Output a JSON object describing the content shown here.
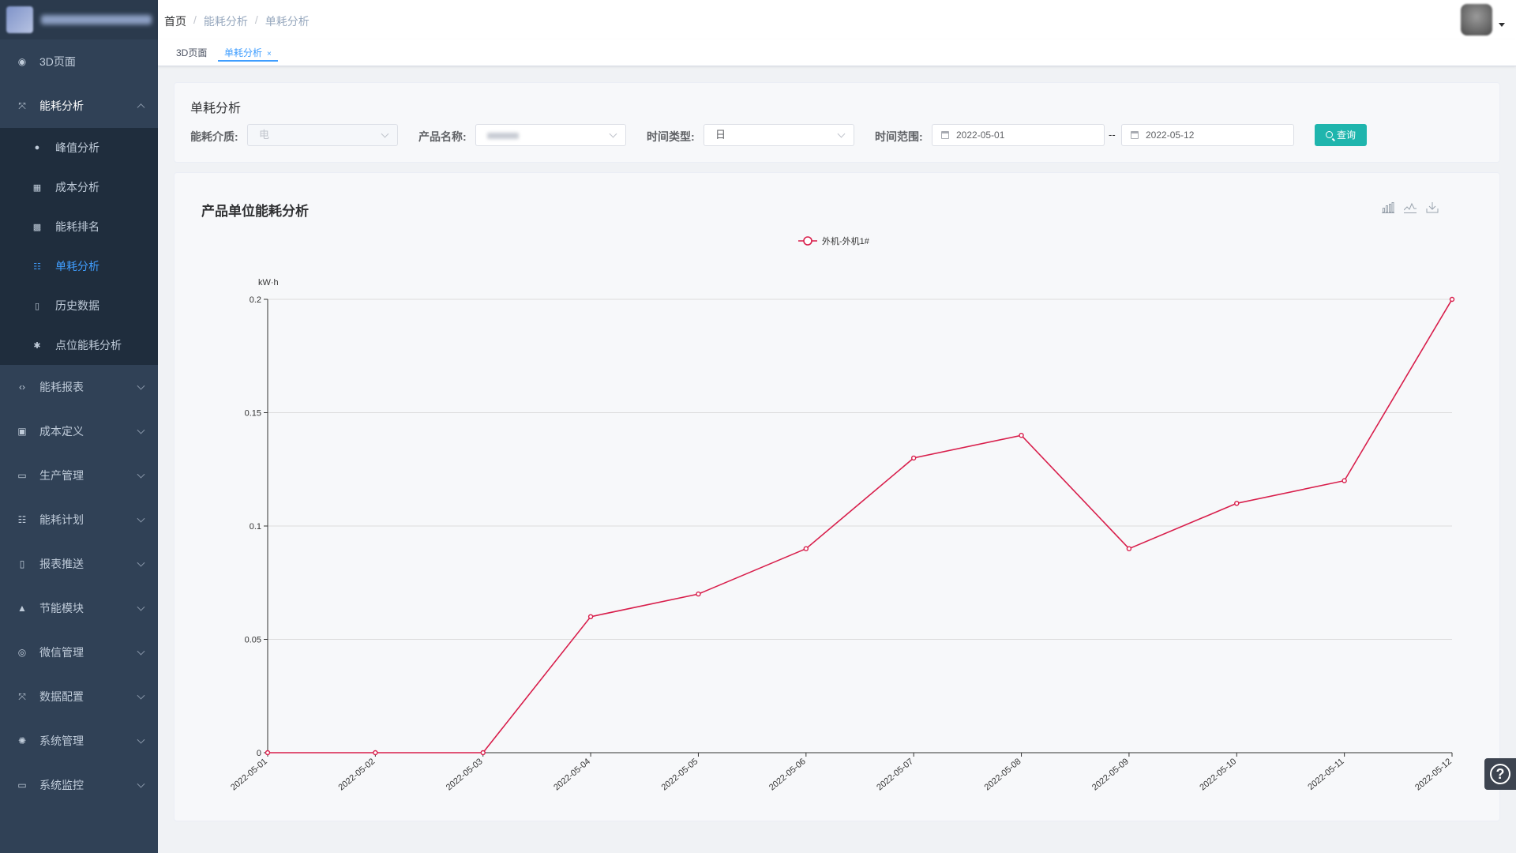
{
  "sidebar": {
    "items": [
      {
        "label": "3D页面",
        "icon": "dashboard-icon"
      },
      {
        "label": "能耗分析",
        "icon": "fullscreen-icon",
        "open": true,
        "children": [
          {
            "label": "峰值分析",
            "icon": "info-icon"
          },
          {
            "label": "成本分析",
            "icon": "table-icon"
          },
          {
            "label": "能耗排名",
            "icon": "grid-icon"
          },
          {
            "label": "单耗分析",
            "icon": "tree-table-icon",
            "active": true
          },
          {
            "label": "历史数据",
            "icon": "documentation-icon"
          },
          {
            "label": "点位能耗分析",
            "icon": "bug-icon"
          }
        ]
      },
      {
        "label": "能耗报表",
        "icon": "code-icon"
      },
      {
        "label": "成本定义",
        "icon": "clipboard-icon"
      },
      {
        "label": "生产管理",
        "icon": "monitor-icon"
      },
      {
        "label": "能耗计划",
        "icon": "tree-table-icon"
      },
      {
        "label": "报表推送",
        "icon": "documentation-icon"
      },
      {
        "label": "节能模块",
        "icon": "lock-icon"
      },
      {
        "label": "微信管理",
        "icon": "wechat-icon"
      },
      {
        "label": "数据配置",
        "icon": "fullscreen-icon"
      },
      {
        "label": "系统管理",
        "icon": "gear-icon"
      },
      {
        "label": "系统监控",
        "icon": "monitor-icon"
      }
    ]
  },
  "breadcrumb": [
    "首页",
    "能耗分析",
    "单耗分析"
  ],
  "tags": [
    {
      "label": "3D页面",
      "active": false
    },
    {
      "label": "单耗分析",
      "active": true,
      "close": "×"
    }
  ],
  "filter": {
    "title": "单耗分析",
    "medium_label": "能耗介质:",
    "medium_value": "电",
    "product_label": "产品名称:",
    "time_type_label": "时间类型:",
    "time_type_value": "日",
    "range_label": "时间范围:",
    "start_date": "2022-05-01",
    "range_sep": "--",
    "end_date": "2022-05-12",
    "query_label": "查询"
  },
  "chart_card": {
    "title": "产品单位能耗分析",
    "toolbox": [
      "bar-chart-icon",
      "line-chart-icon",
      "download-icon"
    ]
  },
  "colors": {
    "sidebar_bg": "#304156",
    "accent": "#409eff",
    "query_button": "#1fb5ad",
    "series": "#d81e4b"
  },
  "chart_data": {
    "type": "line",
    "ylabel": "kW·h",
    "x": [
      "2022-05-01",
      "2022-05-02",
      "2022-05-03",
      "2022-05-04",
      "2022-05-05",
      "2022-05-06",
      "2022-05-07",
      "2022-05-08",
      "2022-05-09",
      "2022-05-10",
      "2022-05-11",
      "2022-05-12"
    ],
    "series": [
      {
        "name": "外机-外机1#",
        "values": [
          0,
          0,
          0,
          0.06,
          0.07,
          0.09,
          0.13,
          0.14,
          0.09,
          0.11,
          0.12,
          0.2
        ]
      }
    ],
    "ylim": [
      0,
      0.2
    ],
    "yticks": [
      "0",
      "0.05",
      "0.1",
      "0.15",
      "0.2"
    ],
    "grid": true,
    "legend": "top-center"
  }
}
